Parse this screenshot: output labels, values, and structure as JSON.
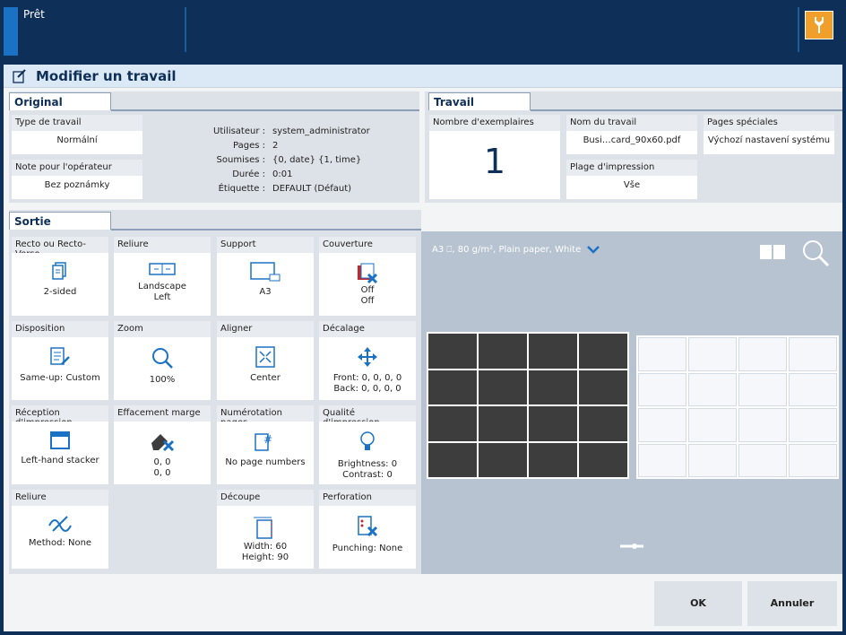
{
  "status": "Prêt",
  "title": "Modifier un travail",
  "original": {
    "tab": "Original",
    "type_label": "Type de travail",
    "type_value": "Normální",
    "note_label": "Note pour l'opérateur",
    "note_value": "Bez poznámky",
    "info": [
      {
        "k": "Utilisateur :",
        "v": "system_administrator"
      },
      {
        "k": "Pages :",
        "v": "2"
      },
      {
        "k": "Soumises :",
        "v": "{0, date} {1, time}"
      },
      {
        "k": "Durée :",
        "v": "0:01"
      },
      {
        "k": "Étiquette :",
        "v": "DEFAULT (Défaut)"
      }
    ]
  },
  "travail": {
    "tab": "Travail",
    "copies_label": "Nombre d'exemplaires",
    "copies_value": "1",
    "name_label": "Nom du travail",
    "name_value": "Busi…card_90x60.pdf",
    "range_label": "Plage d'impression",
    "range_value": "Vše",
    "special_label": "Pages spéciales",
    "special_value": "Výchozí nastavení systému"
  },
  "sortie": {
    "tab": "Sortie",
    "tiles": [
      {
        "label": "Recto ou Recto-Verso",
        "v1": "2-sided",
        "v2": ""
      },
      {
        "label": "Reliure",
        "v1": "Landscape",
        "v2": "Left"
      },
      {
        "label": "Support",
        "v1": "A3",
        "v2": ""
      },
      {
        "label": "Couverture",
        "v1": "Off",
        "v2": "Off"
      },
      {
        "label": "Disposition",
        "v1": "Same-up: Custom",
        "v2": ""
      },
      {
        "label": "Zoom",
        "v1": "100%",
        "v2": ""
      },
      {
        "label": "Aligner",
        "v1": "Center",
        "v2": ""
      },
      {
        "label": "Décalage",
        "v1": "Front: 0, 0, 0, 0",
        "v2": "Back: 0, 0, 0, 0"
      },
      {
        "label": "Réception d'impression",
        "v1": "Left-hand stacker",
        "v2": ""
      },
      {
        "label": "Effacement marge",
        "v1": "0, 0",
        "v2": "0, 0"
      },
      {
        "label": "Numérotation pages",
        "v1": "No page numbers",
        "v2": ""
      },
      {
        "label": "Qualité d'impression",
        "v1": "Brightness: 0",
        "v2": "Contrast: 0"
      },
      {
        "label": "Reliure",
        "v1": "Method: None",
        "v2": ""
      },
      {
        "label": "Découpe",
        "v1": "Width: 60",
        "v2": "Height: 90"
      },
      {
        "label": "Perforation",
        "v1": "Punching: None",
        "v2": ""
      }
    ]
  },
  "preview": {
    "media": "A3 ⎕, 80 g/m², Plain paper, White"
  },
  "buttons": {
    "ok": "OK",
    "cancel": "Annuler"
  },
  "colors": {
    "accent": "#0e2f57",
    "brand": "#1b72c4",
    "wrench": "#f0a02a"
  }
}
